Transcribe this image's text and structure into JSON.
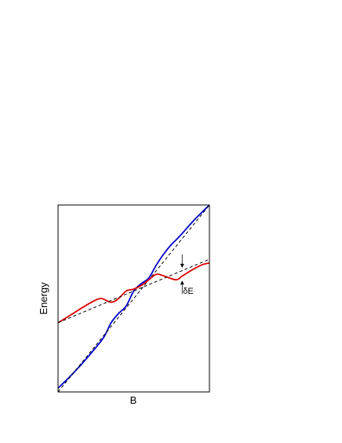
{
  "chart_data": {
    "type": "line",
    "title": "",
    "xlabel": "B",
    "ylabel": "Energy",
    "xlim": [
      0,
      1
    ],
    "ylim": [
      0,
      1
    ],
    "grid": false,
    "legend": "none",
    "series": [
      {
        "color": "#0000cc",
        "style": "solid",
        "x": [
          0,
          0.1,
          0.2,
          0.3,
          0.35,
          0.4,
          0.45,
          0.5,
          0.55,
          0.6,
          0.65,
          0.7,
          0.75,
          0.8,
          0.9,
          1.0
        ],
        "y": [
          0.02,
          0.1,
          0.19,
          0.29,
          0.37,
          0.42,
          0.46,
          0.54,
          0.58,
          0.61,
          0.68,
          0.74,
          0.79,
          0.83,
          0.92,
          1.0
        ]
      },
      {
        "color": "#000000",
        "style": "dashed",
        "x": [
          0,
          1
        ],
        "y": [
          0.0,
          1.0
        ]
      },
      {
        "color": "#dd0000",
        "style": "solid",
        "x": [
          0,
          0.1,
          0.2,
          0.28,
          0.35,
          0.4,
          0.45,
          0.5,
          0.55,
          0.6,
          0.65,
          0.7,
          0.78,
          0.82,
          0.88,
          0.95,
          1.0
        ],
        "y": [
          0.37,
          0.42,
          0.47,
          0.5,
          0.48,
          0.5,
          0.54,
          0.55,
          0.57,
          0.6,
          0.63,
          0.62,
          0.6,
          0.62,
          0.65,
          0.68,
          0.69
        ]
      },
      {
        "color": "#000000",
        "style": "dashed",
        "x": [
          0,
          1
        ],
        "y": [
          0.37,
          0.71
        ]
      }
    ],
    "annotations": [
      {
        "text": "δE",
        "x": 0.82,
        "y_top": 0.66,
        "y_bottom": 0.6,
        "arrow": "double-opposing"
      }
    ]
  }
}
